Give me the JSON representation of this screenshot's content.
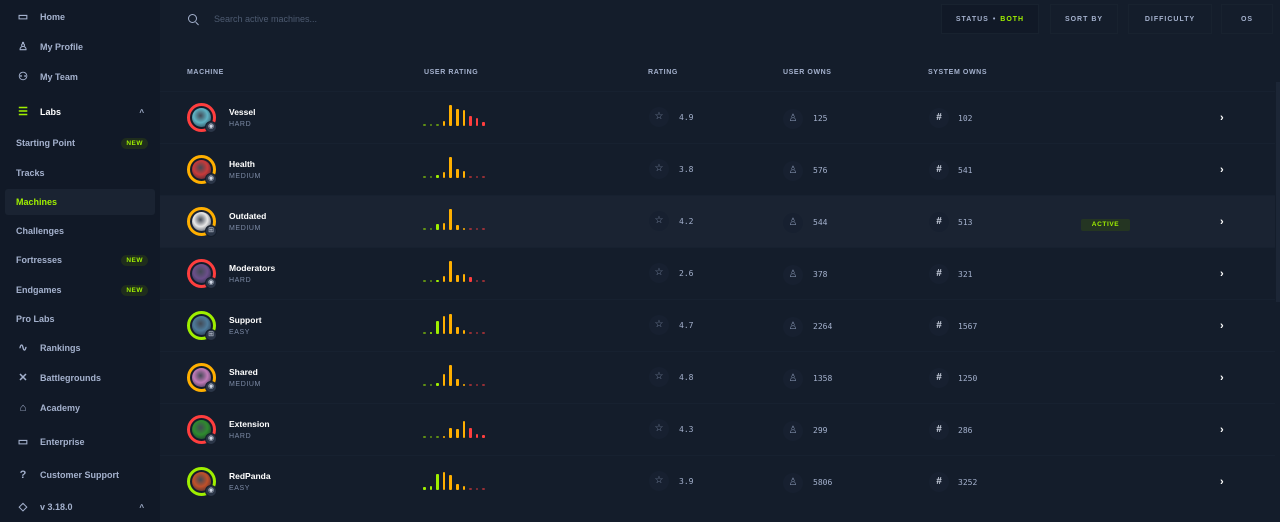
{
  "sidebar": {
    "items": [
      {
        "label": "Home",
        "icon": "monitor-icon"
      },
      {
        "label": "My Profile",
        "icon": "user-icon"
      },
      {
        "label": "My Team",
        "icon": "users-icon"
      },
      {
        "label": "Labs",
        "icon": "server-icon"
      },
      {
        "label": "Starting Point",
        "badge": "NEW"
      },
      {
        "label": "Tracks"
      },
      {
        "label": "Machines",
        "active": true
      },
      {
        "label": "Challenges"
      },
      {
        "label": "Fortresses",
        "badge": "NEW"
      },
      {
        "label": "Endgames",
        "badge": "NEW"
      },
      {
        "label": "Pro Labs"
      },
      {
        "label": "Rankings",
        "icon": "activity-icon"
      },
      {
        "label": "Battlegrounds",
        "icon": "swords-icon"
      },
      {
        "label": "Academy",
        "icon": "graduation-cap-icon"
      },
      {
        "label": "Enterprise",
        "icon": "laptop-icon"
      },
      {
        "label": "Customer Support",
        "icon": "help-circle-icon"
      },
      {
        "label": "v 3.18.0",
        "icon": "tag-icon"
      }
    ]
  },
  "search": {
    "placeholder": "Search active machines..."
  },
  "filters": {
    "status_label": "STATUS",
    "status_value": "BOTH",
    "sort": "SORT BY",
    "difficulty": "DIFFICULTY",
    "os": "OS"
  },
  "columns": {
    "machine": "MACHINE",
    "user_rating": "USER RATING",
    "rating": "RATING",
    "user_owns": "USER OWNS",
    "system_owns": "SYSTEM OWNS"
  },
  "colors": {
    "accent": "#9fef00",
    "easy": "#9fef00",
    "medium": "#ffaf00",
    "hard": "#ff3e3e",
    "bg": "#141d2b"
  },
  "machines": [
    {
      "name": "Vessel",
      "difficulty": "HARD",
      "os": "linux",
      "rating": "4.9",
      "user_owns": "125",
      "system_owns": "102",
      "dist": [
        0.05,
        0.05,
        0.05,
        0.25,
        1,
        0.8,
        0.75,
        0.5,
        0.4,
        0.2
      ]
    },
    {
      "name": "Health",
      "difficulty": "MEDIUM",
      "os": "linux",
      "rating": "3.8",
      "user_owns": "576",
      "system_owns": "541",
      "dist": [
        0.05,
        0.05,
        0.15,
        0.3,
        1,
        0.45,
        0.35,
        0.05,
        0.05,
        0.05
      ]
    },
    {
      "name": "Outdated",
      "difficulty": "MEDIUM",
      "os": "windows",
      "rating": "4.2",
      "user_owns": "544",
      "system_owns": "513",
      "status": "ACTIVE",
      "dist": [
        0.05,
        0.05,
        0.3,
        0.35,
        1,
        0.25,
        0.1,
        0.03,
        0.03,
        0.03
      ]
    },
    {
      "name": "Moderators",
      "difficulty": "HARD",
      "os": "linux",
      "rating": "2.6",
      "user_owns": "378",
      "system_owns": "321",
      "dist": [
        0.05,
        0.05,
        0.1,
        0.3,
        1,
        0.35,
        0.4,
        0.25,
        0.03,
        0.03
      ]
    },
    {
      "name": "Support",
      "difficulty": "EASY",
      "os": "windows",
      "rating": "4.7",
      "user_owns": "2264",
      "system_owns": "1567",
      "dist": [
        0.03,
        0.1,
        0.6,
        0.85,
        0.95,
        0.35,
        0.2,
        0.05,
        0.03,
        0.03
      ]
    },
    {
      "name": "Shared",
      "difficulty": "MEDIUM",
      "os": "linux",
      "rating": "4.8",
      "user_owns": "1358",
      "system_owns": "1250",
      "dist": [
        0.03,
        0.03,
        0.15,
        0.55,
        1,
        0.35,
        0.1,
        0.03,
        0.03,
        0.03
      ]
    },
    {
      "name": "Extension",
      "difficulty": "HARD",
      "os": "linux",
      "rating": "4.3",
      "user_owns": "299",
      "system_owns": "286",
      "dist": [
        0.05,
        0.03,
        0.03,
        0.1,
        0.5,
        0.45,
        0.8,
        0.5,
        0.2,
        0.15
      ]
    },
    {
      "name": "RedPanda",
      "difficulty": "EASY",
      "os": "linux",
      "rating": "3.9",
      "user_owns": "5806",
      "system_owns": "3252",
      "dist": [
        0.15,
        0.2,
        0.75,
        0.85,
        0.7,
        0.3,
        0.2,
        0.03,
        0.03,
        0.03
      ]
    }
  ]
}
